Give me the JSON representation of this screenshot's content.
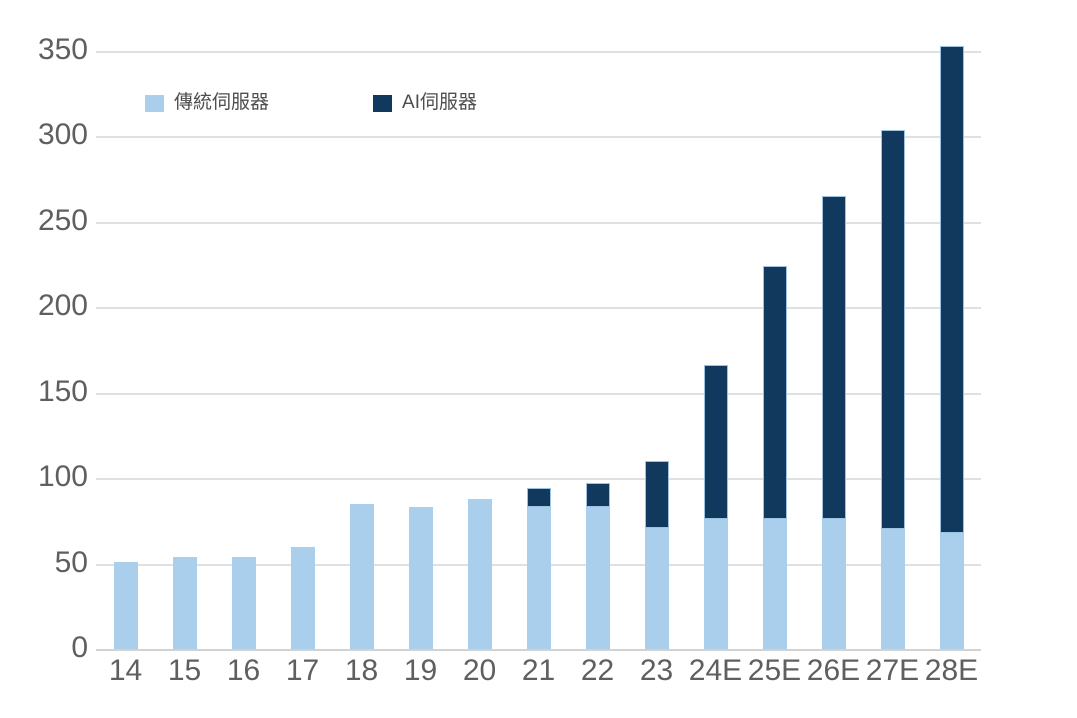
{
  "chart_data": {
    "type": "bar",
    "stacked": true,
    "categories": [
      "14",
      "15",
      "16",
      "17",
      "18",
      "19",
      "20",
      "21",
      "22",
      "23",
      "24E",
      "25E",
      "26E",
      "27E",
      "28E"
    ],
    "series": [
      {
        "name": "傳統伺服器",
        "color": "#a9cfec",
        "values": [
          51,
          54,
          54,
          60,
          85,
          83,
          88,
          83,
          83,
          71,
          76,
          76,
          76,
          70,
          68
        ]
      },
      {
        "name": "AI伺服器",
        "color": "#10395d",
        "values": [
          0,
          0,
          0,
          0,
          0,
          0,
          0,
          11,
          14,
          39,
          90,
          148,
          189,
          234,
          285
        ]
      }
    ],
    "totals": [
      51,
      54,
      54,
      60,
      85,
      83,
      88,
      94,
      97,
      110,
      166,
      224,
      265,
      304,
      353
    ],
    "ylim": [
      0,
      350
    ],
    "yticks": [
      0,
      50,
      100,
      150,
      200,
      250,
      300,
      350
    ],
    "grid": true,
    "legend_position": "top-left-inside"
  },
  "colors": {
    "background": "#ffffff",
    "gridline": "#e0e0e0",
    "zero_line": "#d2d2d2",
    "tick_label": "#5f5f5f",
    "legend_label": "#4d4d4d",
    "dark_bar_border": "#9ec3e0"
  }
}
